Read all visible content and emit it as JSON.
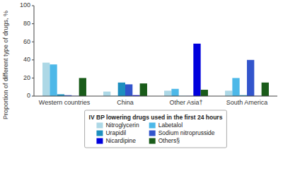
{
  "chart_data": {
    "type": "bar",
    "categories": [
      "Western countries",
      "China",
      "Other Asia†",
      "South America"
    ],
    "series": [
      {
        "name": "Nitroglycerin",
        "color": "#add8e6",
        "values": [
          37,
          5,
          6,
          6
        ]
      },
      {
        "name": "Labetalol",
        "color": "#4db8e8",
        "values": [
          35,
          0.3,
          8,
          20
        ]
      },
      {
        "name": "Urapidil",
        "color": "#1e8fbf",
        "values": [
          2,
          15,
          0.2,
          1
        ]
      },
      {
        "name": "Sodium nitroprusside",
        "color": "#3355cc",
        "values": [
          1,
          13,
          0.2,
          40
        ]
      },
      {
        "name": "Nicardipine",
        "color": "#0000dd",
        "values": [
          0.2,
          1,
          58,
          0.2
        ]
      },
      {
        "name": "Others§",
        "color": "#1a5c1a",
        "values": [
          20,
          14,
          7,
          15
        ]
      }
    ],
    "y_label": "Proportion of different type of drugs, %",
    "ylim": [
      0,
      100
    ],
    "yticks": [
      0,
      20,
      40,
      60,
      80,
      100
    ],
    "grid": false,
    "legend": "bottom",
    "legend_title": "IV BP lowering drugs used in the first 24 hours"
  }
}
